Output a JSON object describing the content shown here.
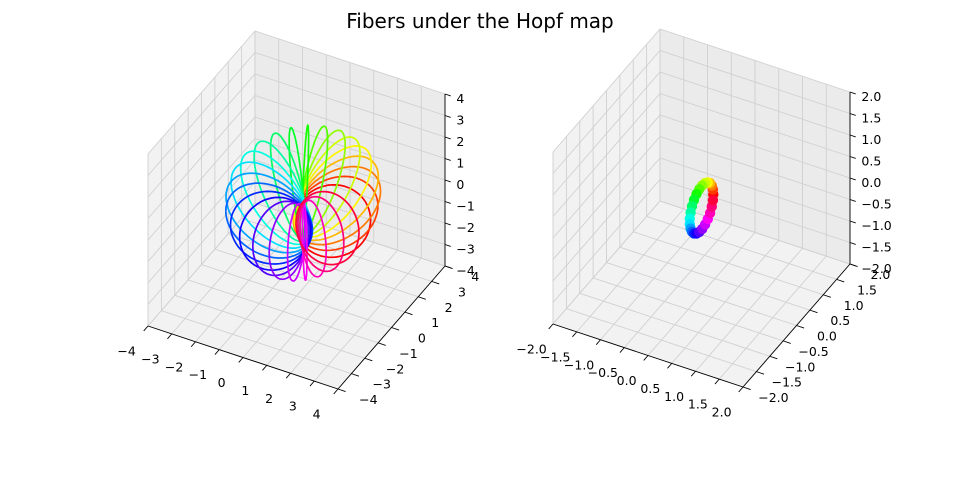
{
  "figure": {
    "title": "Fibers under the Hopf map"
  },
  "chart_data": [
    {
      "type": "line3d",
      "title": "",
      "xlabel": "",
      "ylabel": "",
      "zlabel": "",
      "xlim": [
        -4,
        4
      ],
      "ylim": [
        -4,
        4
      ],
      "zlim": [
        -4,
        4
      ],
      "grid": true,
      "xticks": [
        "−4",
        "−3",
        "−2",
        "−1",
        "0",
        "1",
        "2",
        "3",
        "4"
      ],
      "yticks": [
        "−4",
        "−3",
        "−2",
        "−1",
        "0",
        "1",
        "2",
        "3",
        "4"
      ],
      "zticks": [
        "−4",
        "−3",
        "−2",
        "−1",
        "0",
        "1",
        "2",
        "3",
        "4"
      ],
      "colormap": "hsv",
      "fiber_count": 25,
      "description_of_series": "circular fibers (Hopf circles) colored by hue"
    },
    {
      "type": "scatter3d",
      "title": "",
      "xlabel": "",
      "ylabel": "",
      "zlabel": "",
      "xlim": [
        -2,
        2
      ],
      "ylim": [
        -2,
        2
      ],
      "zlim": [
        -2,
        2
      ],
      "grid": true,
      "xticks": [
        "−2.0",
        "−1.5",
        "−1.0",
        "−0.5",
        "0.0",
        "0.5",
        "1.0",
        "1.5",
        "2.0"
      ],
      "yticks": [
        "−2.0",
        "−1.5",
        "−1.0",
        "−0.5",
        "0.0",
        "0.5",
        "1.0",
        "1.5",
        "2.0"
      ],
      "zticks": [
        "−2.0",
        "−1.5",
        "−1.0",
        "−0.5",
        "0.0",
        "0.5",
        "1.0",
        "1.5",
        "2.0"
      ],
      "colormap": "hsv",
      "point_count": 25
    }
  ]
}
